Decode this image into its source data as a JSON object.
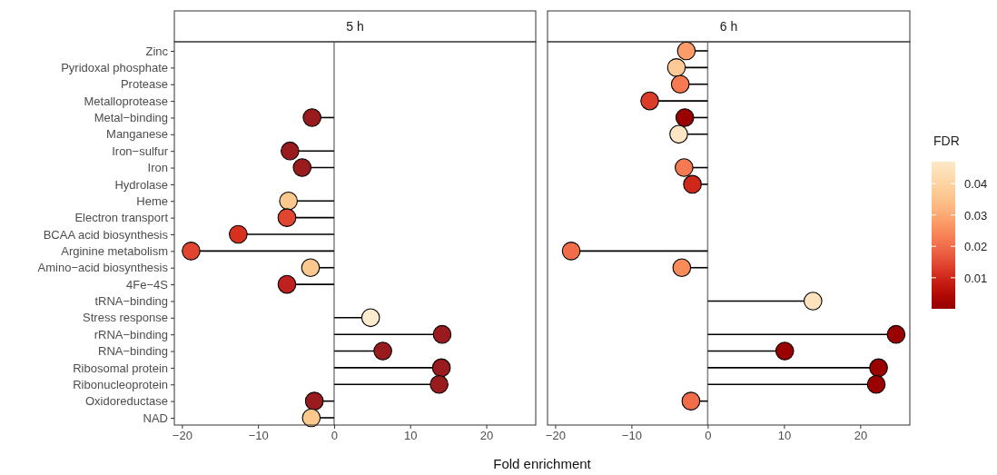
{
  "chart_data": [
    {
      "type": "lollipop",
      "title": "5 h",
      "xlabel": "Fold enrichment",
      "orientation": "horizontal",
      "marker": "circle",
      "grid": false,
      "categories": [
        "Zinc",
        "Pyridoxal phosphate",
        "Protease",
        "Metalloprotease",
        "Metal−binding",
        "Manganese",
        "Iron−sulfur",
        "Iron",
        "Hydrolase",
        "Heme",
        "Electron transport",
        "BCAA acid biosynthesis",
        "Arginine metabolism",
        "Amino−acid biosynthesis",
        "4Fe−4S",
        "tRNA−binding",
        "Stress response",
        "rRNA−binding",
        "RNA−binding",
        "Ribosomal protein",
        "Ribonucleoprotein",
        "Oxidoreductase",
        "NAD"
      ],
      "values": [
        null,
        null,
        null,
        null,
        -2.9,
        null,
        -5.8,
        -4.2,
        null,
        -6.0,
        -6.2,
        -12.6,
        -18.8,
        -3.1,
        -6.2,
        null,
        4.8,
        14.2,
        6.4,
        14.1,
        13.8,
        -2.6,
        -3.0
      ],
      "colors": [
        null,
        null,
        null,
        null,
        "#991b1e",
        null,
        "#991b1e",
        "#991b1e",
        null,
        "#fdc88e",
        "#e0452f",
        "#d7301f",
        "#e0452f",
        "#fdc88e",
        "#c0201f",
        null,
        "#fdebd0",
        "#991b1e",
        "#991b1e",
        "#991b1e",
        "#991b1e",
        "#991b1e",
        "#fdc88e"
      ],
      "xlim": [
        -21,
        26.5
      ],
      "xticks": [
        -20,
        -10,
        0,
        10,
        20
      ],
      "ref_lines": [
        {
          "axis": "x",
          "value": 0,
          "color": "#808080"
        }
      ]
    },
    {
      "type": "lollipop",
      "title": "6 h",
      "orientation": "horizontal",
      "marker": "circle",
      "grid": false,
      "tick_labels": "x",
      "categories": [
        "Zinc",
        "Pyridoxal phosphate",
        "Protease",
        "Metalloprotease",
        "Metal−binding",
        "Manganese",
        "Iron−sulfur",
        "Iron",
        "Hydrolase",
        "Heme",
        "Electron transport",
        "BCAA acid biosynthesis",
        "Arginine metabolism",
        "Amino−acid biosynthesis",
        "4Fe−4S",
        "tRNA−binding",
        "Stress response",
        "rRNA−binding",
        "RNA−binding",
        "Ribosomal protein",
        "Ribonucleoprotein",
        "Oxidoreductase",
        "NAD"
      ],
      "values": [
        -2.8,
        -4.1,
        -3.6,
        -7.6,
        -3.0,
        -3.8,
        null,
        -3.1,
        -2.0,
        null,
        null,
        null,
        -17.9,
        -3.4,
        null,
        13.8,
        null,
        24.7,
        10.1,
        22.4,
        22.1,
        -2.2,
        null
      ],
      "cvalues": [
        0.028,
        0.037,
        0.022,
        0.013,
        0.001,
        0.046,
        null,
        0.022,
        0.01,
        null,
        null,
        null,
        0.02,
        0.025,
        null,
        0.045,
        null,
        0.001,
        0.001,
        0.001,
        0.001,
        0.02,
        null
      ],
      "xlim": [
        -21,
        26.5
      ],
      "xticks": [
        -20,
        -10,
        0,
        10,
        20
      ],
      "clim": [
        0.0001,
        0.047
      ],
      "cticks": [
        0.01,
        0.02,
        0.03,
        0.04
      ],
      "clabel": "FDR",
      "ref_lines": [
        {
          "axis": "x",
          "value": 0,
          "color": "#808080"
        }
      ]
    }
  ]
}
